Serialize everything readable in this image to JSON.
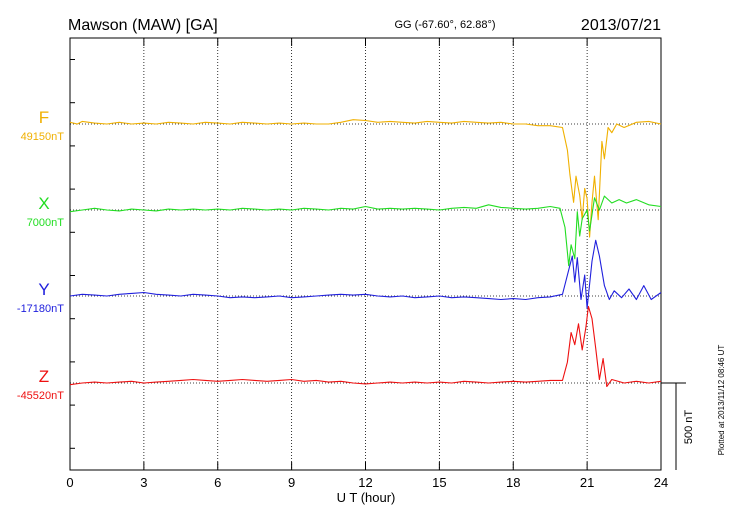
{
  "header": {
    "station": "Mawson (MAW)  [GA]",
    "coords": "GG (-67.60°,  62.88°)",
    "date": "2013/07/21"
  },
  "side_note": "Plotted at 2013/11/12 08:46 UT",
  "scale_bar": {
    "label": "500 nT",
    "value_nT": 500
  },
  "chart_data": {
    "type": "line",
    "xlabel": "U T (hour)",
    "xlim": [
      0,
      24
    ],
    "xticks": [
      0,
      3,
      6,
      9,
      12,
      15,
      18,
      21,
      24
    ],
    "grid": true,
    "series": [
      {
        "name": "F",
        "baseline_label": "49150nT",
        "baseline_nT": 49150,
        "color": "#f0b000",
        "points": [
          [
            0,
            49160
          ],
          [
            0.3,
            49150
          ],
          [
            0.5,
            49165
          ],
          [
            1,
            49155
          ],
          [
            1.5,
            49150
          ],
          [
            2,
            49160
          ],
          [
            2.5,
            49150
          ],
          [
            3,
            49155
          ],
          [
            3.5,
            49150
          ],
          [
            4,
            49160
          ],
          [
            4.5,
            49155
          ],
          [
            5,
            49150
          ],
          [
            5.5,
            49160
          ],
          [
            6,
            49155
          ],
          [
            6.5,
            49150
          ],
          [
            7,
            49160
          ],
          [
            7.5,
            49155
          ],
          [
            8,
            49150
          ],
          [
            8.5,
            49155
          ],
          [
            9,
            49150
          ],
          [
            9.5,
            49155
          ],
          [
            10,
            49150
          ],
          [
            10.5,
            49150
          ],
          [
            11,
            49160
          ],
          [
            11.5,
            49175
          ],
          [
            12,
            49170
          ],
          [
            12.5,
            49160
          ],
          [
            13,
            49165
          ],
          [
            13.5,
            49160
          ],
          [
            14,
            49155
          ],
          [
            14.5,
            49165
          ],
          [
            15,
            49160
          ],
          [
            15.5,
            49155
          ],
          [
            16,
            49165
          ],
          [
            16.5,
            49160
          ],
          [
            17,
            49155
          ],
          [
            17.5,
            49160
          ],
          [
            18,
            49150
          ],
          [
            18.5,
            49150
          ],
          [
            19,
            49140
          ],
          [
            19.5,
            49140
          ],
          [
            20,
            49130
          ],
          [
            20.2,
            49000
          ],
          [
            20.3,
            48860
          ],
          [
            20.45,
            48700
          ],
          [
            20.55,
            48850
          ],
          [
            20.7,
            48740
          ],
          [
            20.8,
            48600
          ],
          [
            20.9,
            48780
          ],
          [
            21.0,
            48720
          ],
          [
            21.1,
            48500
          ],
          [
            21.2,
            48700
          ],
          [
            21.3,
            48850
          ],
          [
            21.45,
            48600
          ],
          [
            21.6,
            49050
          ],
          [
            21.7,
            48950
          ],
          [
            21.85,
            49130
          ],
          [
            22,
            49100
          ],
          [
            22.2,
            49150
          ],
          [
            22.5,
            49130
          ],
          [
            23,
            49160
          ],
          [
            23.5,
            49165
          ],
          [
            24,
            49150
          ]
        ]
      },
      {
        "name": "X",
        "baseline_label": "7000nT",
        "baseline_nT": 7000,
        "color": "#22dd22",
        "points": [
          [
            0,
            6990
          ],
          [
            0.5,
            7000
          ],
          [
            1,
            7010
          ],
          [
            1.5,
            7000
          ],
          [
            2,
            6995
          ],
          [
            2.5,
            7005
          ],
          [
            3,
            7000
          ],
          [
            3.5,
            6995
          ],
          [
            4,
            7005
          ],
          [
            4.5,
            7000
          ],
          [
            5,
            7005
          ],
          [
            5.5,
            7000
          ],
          [
            6,
            7005
          ],
          [
            6.5,
            7000
          ],
          [
            7,
            7010
          ],
          [
            7.5,
            7005
          ],
          [
            8,
            7000
          ],
          [
            8.5,
            7005
          ],
          [
            9,
            7000
          ],
          [
            9.5,
            7010
          ],
          [
            10,
            7005
          ],
          [
            10.5,
            7000
          ],
          [
            11,
            7010
          ],
          [
            11.5,
            7005
          ],
          [
            12,
            7020
          ],
          [
            12.5,
            7005
          ],
          [
            13,
            7010
          ],
          [
            13.5,
            7005
          ],
          [
            14,
            7010
          ],
          [
            14.5,
            7005
          ],
          [
            15,
            7000
          ],
          [
            15.5,
            7010
          ],
          [
            16,
            7015
          ],
          [
            16.5,
            7010
          ],
          [
            17,
            7030
          ],
          [
            17.5,
            7015
          ],
          [
            18,
            7010
          ],
          [
            18.5,
            7005
          ],
          [
            19,
            7010
          ],
          [
            19.5,
            7020
          ],
          [
            19.9,
            7010
          ],
          [
            20.1,
            6900
          ],
          [
            20.25,
            6680
          ],
          [
            20.35,
            6800
          ],
          [
            20.5,
            6720
          ],
          [
            20.6,
            6990
          ],
          [
            20.7,
            6850
          ],
          [
            20.8,
            6950
          ],
          [
            21,
            7000
          ],
          [
            21.1,
            6880
          ],
          [
            21.3,
            7070
          ],
          [
            21.5,
            7000
          ],
          [
            21.7,
            7080
          ],
          [
            22,
            7040
          ],
          [
            22.3,
            7060
          ],
          [
            22.6,
            7040
          ],
          [
            23,
            7060
          ],
          [
            23.5,
            7030
          ],
          [
            24,
            7020
          ]
        ]
      },
      {
        "name": "Y",
        "baseline_label": "-17180nT",
        "baseline_nT": -17180,
        "color": "#2020dd",
        "points": [
          [
            0,
            -17180
          ],
          [
            0.5,
            -17170
          ],
          [
            1,
            -17175
          ],
          [
            1.5,
            -17180
          ],
          [
            2,
            -17170
          ],
          [
            2.5,
            -17165
          ],
          [
            3,
            -17160
          ],
          [
            3.5,
            -17170
          ],
          [
            4,
            -17175
          ],
          [
            4.5,
            -17180
          ],
          [
            5,
            -17170
          ],
          [
            5.5,
            -17175
          ],
          [
            6,
            -17180
          ],
          [
            6.5,
            -17190
          ],
          [
            7,
            -17185
          ],
          [
            7.5,
            -17190
          ],
          [
            8,
            -17185
          ],
          [
            8.5,
            -17180
          ],
          [
            9,
            -17190
          ],
          [
            9.5,
            -17185
          ],
          [
            10,
            -17180
          ],
          [
            10.5,
            -17175
          ],
          [
            11,
            -17170
          ],
          [
            11.5,
            -17175
          ],
          [
            12,
            -17170
          ],
          [
            12.5,
            -17180
          ],
          [
            13,
            -17185
          ],
          [
            13.5,
            -17180
          ],
          [
            14,
            -17190
          ],
          [
            14.5,
            -17185
          ],
          [
            15,
            -17180
          ],
          [
            15.5,
            -17190
          ],
          [
            16,
            -17185
          ],
          [
            16.5,
            -17190
          ],
          [
            17,
            -17195
          ],
          [
            17.5,
            -17200
          ],
          [
            18,
            -17195
          ],
          [
            18.5,
            -17200
          ],
          [
            19,
            -17190
          ],
          [
            19.5,
            -17185
          ],
          [
            20,
            -17170
          ],
          [
            20.2,
            -17060
          ],
          [
            20.4,
            -16950
          ],
          [
            20.5,
            -17100
          ],
          [
            20.6,
            -16960
          ],
          [
            20.75,
            -17200
          ],
          [
            20.9,
            -17060
          ],
          [
            21.0,
            -17250
          ],
          [
            21.2,
            -16980
          ],
          [
            21.35,
            -16860
          ],
          [
            21.5,
            -16950
          ],
          [
            21.7,
            -17120
          ],
          [
            21.9,
            -17200
          ],
          [
            22.1,
            -17150
          ],
          [
            22.4,
            -17190
          ],
          [
            22.7,
            -17140
          ],
          [
            23,
            -17200
          ],
          [
            23.3,
            -17120
          ],
          [
            23.6,
            -17200
          ],
          [
            24,
            -17160
          ]
        ]
      },
      {
        "name": "Z",
        "baseline_label": "-45520nT",
        "baseline_nT": -45520,
        "color": "#ee1010",
        "points": [
          [
            0,
            -45530
          ],
          [
            0.5,
            -45520
          ],
          [
            1,
            -45515
          ],
          [
            1.5,
            -45520
          ],
          [
            2,
            -45515
          ],
          [
            2.5,
            -45510
          ],
          [
            3,
            -45520
          ],
          [
            3.5,
            -45515
          ],
          [
            4,
            -45510
          ],
          [
            4.5,
            -45505
          ],
          [
            5,
            -45500
          ],
          [
            5.5,
            -45505
          ],
          [
            6,
            -45510
          ],
          [
            6.5,
            -45505
          ],
          [
            7,
            -45500
          ],
          [
            7.5,
            -45505
          ],
          [
            8,
            -45510
          ],
          [
            8.5,
            -45505
          ],
          [
            9,
            -45500
          ],
          [
            9.5,
            -45510
          ],
          [
            10,
            -45505
          ],
          [
            10.5,
            -45515
          ],
          [
            11,
            -45510
          ],
          [
            11.5,
            -45520
          ],
          [
            12,
            -45525
          ],
          [
            12.5,
            -45520
          ],
          [
            13,
            -45515
          ],
          [
            13.5,
            -45520
          ],
          [
            14,
            -45515
          ],
          [
            14.5,
            -45520
          ],
          [
            15,
            -45515
          ],
          [
            15.5,
            -45520
          ],
          [
            16,
            -45510
          ],
          [
            16.5,
            -45515
          ],
          [
            17,
            -45520
          ],
          [
            17.5,
            -45515
          ],
          [
            18,
            -45510
          ],
          [
            18.5,
            -45515
          ],
          [
            19,
            -45510
          ],
          [
            19.5,
            -45505
          ],
          [
            20,
            -45505
          ],
          [
            20.2,
            -45400
          ],
          [
            20.35,
            -45230
          ],
          [
            20.5,
            -45300
          ],
          [
            20.65,
            -45180
          ],
          [
            20.8,
            -45330
          ],
          [
            20.95,
            -45200
          ],
          [
            21.05,
            -45080
          ],
          [
            21.2,
            -45150
          ],
          [
            21.35,
            -45320
          ],
          [
            21.5,
            -45500
          ],
          [
            21.65,
            -45380
          ],
          [
            21.8,
            -45540
          ],
          [
            22,
            -45500
          ],
          [
            22.5,
            -45520
          ],
          [
            23,
            -45510
          ],
          [
            23.5,
            -45520
          ],
          [
            24,
            -45510
          ]
        ]
      }
    ]
  }
}
